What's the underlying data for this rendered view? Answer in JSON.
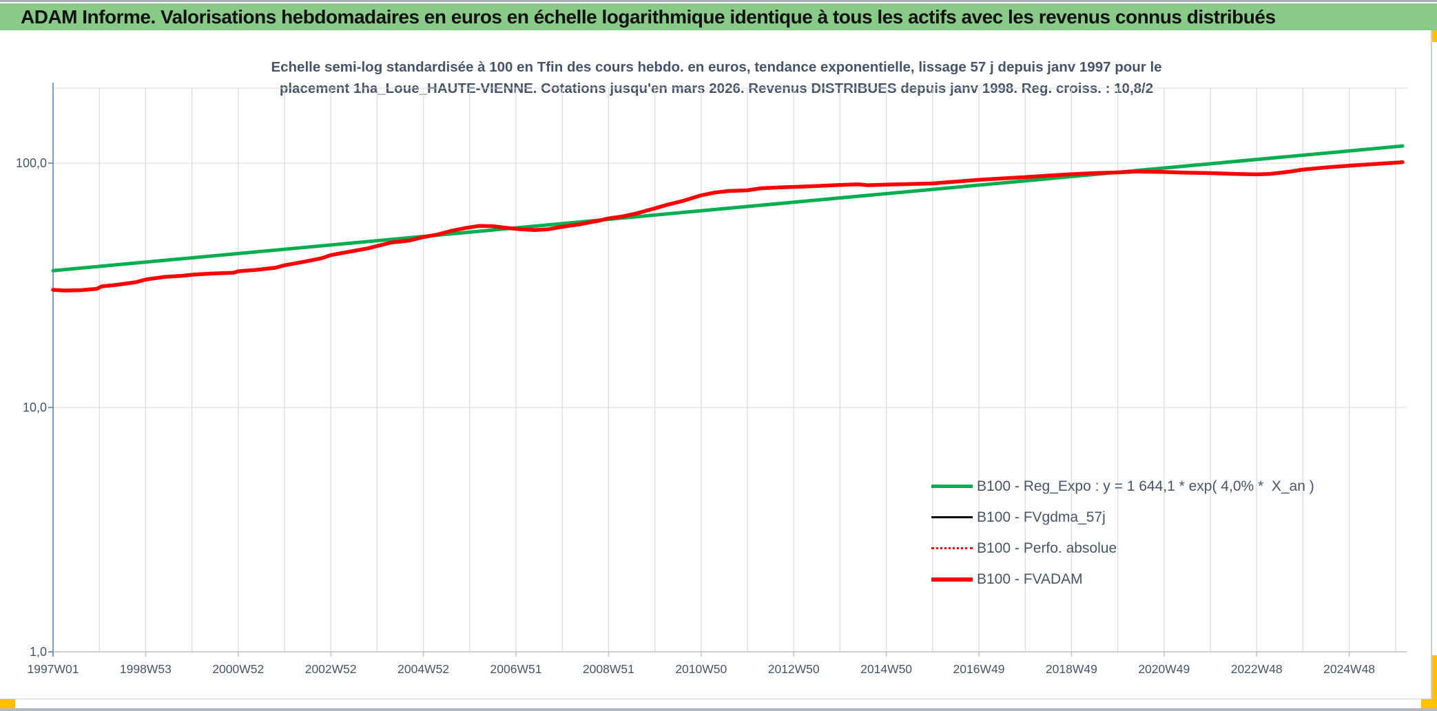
{
  "header": {
    "title": "ADAM Informe. Valorisations hebdomadaires en euros en échelle logarithmique identique à tous les actifs avec les revenus connus distribués",
    "bg_color": "#8ACA89"
  },
  "chart_title": {
    "line1": "Echelle semi-log standardisée à 100 en Tfin des cours hebdo. en euros, tendance exponentielle, lissage 57 j depuis janv 1997 pour le",
    "line2": "placement 1ha_Loue_HAUTE-VIENNE. Cotations jusqu'en mars 2026. Revenus DISTRIBUES depuis janv 1998. Reg. croiss. : 10,8/2"
  },
  "legend": {
    "items": [
      {
        "label": "B100 - Reg_Expo : y = 1 644,1 * exp( 4,0% *  X_an )",
        "color": "#00AE50",
        "style": "solid",
        "thickness": 5
      },
      {
        "label": "B100 - FVgdma_57j",
        "color": "#000000",
        "style": "solid",
        "thickness": 3
      },
      {
        "label": "B100 - Perfo. absolue",
        "color": "#FF0000",
        "style": "dotted",
        "thickness": 3
      },
      {
        "label": "B100 - FVADAM",
        "color": "#FF0000",
        "style": "solid",
        "thickness": 6
      }
    ]
  },
  "chart_data": {
    "type": "line",
    "x_axis": {
      "unit": "ISO week (year)",
      "min": 1997.0,
      "max": 2026.6,
      "tick_labels": [
        "1997W01",
        "1998W53",
        "2000W52",
        "2002W52",
        "2004W52",
        "2006W51",
        "2008W51",
        "2010W50",
        "2012W50",
        "2014W50",
        "2016W49",
        "2018W49",
        "2020W49",
        "2022W48",
        "2024W48"
      ],
      "tick_years": [
        1997,
        1999,
        2001,
        2003,
        2005,
        2007,
        2009,
        2011,
        2013,
        2015,
        2017,
        2019,
        2021,
        2023,
        2025
      ],
      "gridline_every_years": 1
    },
    "y_axis": {
      "scale": "log",
      "min": 1,
      "max": 200,
      "ticks": [
        {
          "label": "100,0",
          "value": 100
        },
        {
          "label": "10,0",
          "value": 10
        },
        {
          "label": "1,0",
          "value": 1
        }
      ]
    },
    "grid": true,
    "legend_position": "inside-lower-right",
    "regexpo_points": [
      [
        1997.0,
        36.3
      ],
      [
        2026.15,
        117.5
      ]
    ],
    "fvadam_points": [
      [
        1997.0,
        30.3
      ],
      [
        1997.25,
        30.1
      ],
      [
        1997.6,
        30.2
      ],
      [
        1997.95,
        30.6
      ],
      [
        1998.05,
        31.3
      ],
      [
        1998.4,
        31.8
      ],
      [
        1998.8,
        32.6
      ],
      [
        1999.0,
        33.4
      ],
      [
        1999.4,
        34.2
      ],
      [
        1999.8,
        34.6
      ],
      [
        2000.05,
        35.0
      ],
      [
        2000.4,
        35.3
      ],
      [
        2000.9,
        35.6
      ],
      [
        2001.0,
        36.1
      ],
      [
        2001.4,
        36.6
      ],
      [
        2001.8,
        37.3
      ],
      [
        2002.0,
        38.2
      ],
      [
        2002.4,
        39.4
      ],
      [
        2002.8,
        40.8
      ],
      [
        2003.0,
        42.0
      ],
      [
        2003.4,
        43.4
      ],
      [
        2003.8,
        44.8
      ],
      [
        2004.0,
        45.8
      ],
      [
        2004.3,
        47.3
      ],
      [
        2004.7,
        48.2
      ],
      [
        2005.0,
        49.8
      ],
      [
        2005.3,
        51.0
      ],
      [
        2005.6,
        52.8
      ],
      [
        2005.9,
        54.2
      ],
      [
        2006.2,
        55.3
      ],
      [
        2006.5,
        55.2
      ],
      [
        2006.8,
        54.3
      ],
      [
        2007.1,
        53.6
      ],
      [
        2007.4,
        53.2
      ],
      [
        2007.7,
        53.6
      ],
      [
        2008.0,
        54.9
      ],
      [
        2008.4,
        56.3
      ],
      [
        2008.8,
        58.2
      ],
      [
        2009.0,
        59.4
      ],
      [
        2009.3,
        60.5
      ],
      [
        2009.6,
        62.2
      ],
      [
        2010.0,
        65.3
      ],
      [
        2010.3,
        67.8
      ],
      [
        2010.6,
        70.0
      ],
      [
        2011.0,
        73.8
      ],
      [
        2011.3,
        75.8
      ],
      [
        2011.6,
        76.9
      ],
      [
        2012.0,
        77.4
      ],
      [
        2012.3,
        78.9
      ],
      [
        2012.7,
        79.6
      ],
      [
        2013.0,
        79.9
      ],
      [
        2013.5,
        80.6
      ],
      [
        2014.0,
        81.4
      ],
      [
        2014.4,
        81.9
      ],
      [
        2014.6,
        81.2
      ],
      [
        2015.0,
        81.6
      ],
      [
        2015.5,
        82.1
      ],
      [
        2016.0,
        82.6
      ],
      [
        2016.5,
        84.0
      ],
      [
        2017.0,
        85.4
      ],
      [
        2017.5,
        86.6
      ],
      [
        2018.0,
        87.6
      ],
      [
        2018.5,
        88.9
      ],
      [
        2019.0,
        90.1
      ],
      [
        2019.5,
        91.0
      ],
      [
        2020.0,
        91.6
      ],
      [
        2020.4,
        92.4
      ],
      [
        2021.0,
        92.0
      ],
      [
        2021.5,
        91.4
      ],
      [
        2022.0,
        91.0
      ],
      [
        2022.5,
        90.4
      ],
      [
        2023.0,
        89.9
      ],
      [
        2023.3,
        90.4
      ],
      [
        2023.7,
        92.2
      ],
      [
        2024.0,
        94.1
      ],
      [
        2024.5,
        96.0
      ],
      [
        2025.0,
        97.6
      ],
      [
        2025.5,
        99.0
      ],
      [
        2026.0,
        100.4
      ],
      [
        2026.15,
        100.9
      ]
    ],
    "series": [
      {
        "name": "B100 - Reg_Expo : y = 1 644,1 * exp( 4,0% *  X_an )",
        "color": "#00AE50",
        "style": "solid",
        "width": 5,
        "points_key": "regexpo_points"
      },
      {
        "name": "B100 - FVgdma_57j",
        "color": "#000000",
        "style": "solid",
        "width": 2.5,
        "points_key": "fvadam_points",
        "note": "occluded by FVADAM"
      },
      {
        "name": "B100 - Perfo. absolue",
        "color": "#FF0000",
        "style": "dotted",
        "width": 2,
        "points_key": "fvadam_points",
        "note": "occluded by FVADAM"
      },
      {
        "name": "B100 - FVADAM",
        "color": "#FF0000",
        "style": "solid",
        "width": 5.5,
        "points_key": "fvadam_points"
      }
    ]
  }
}
